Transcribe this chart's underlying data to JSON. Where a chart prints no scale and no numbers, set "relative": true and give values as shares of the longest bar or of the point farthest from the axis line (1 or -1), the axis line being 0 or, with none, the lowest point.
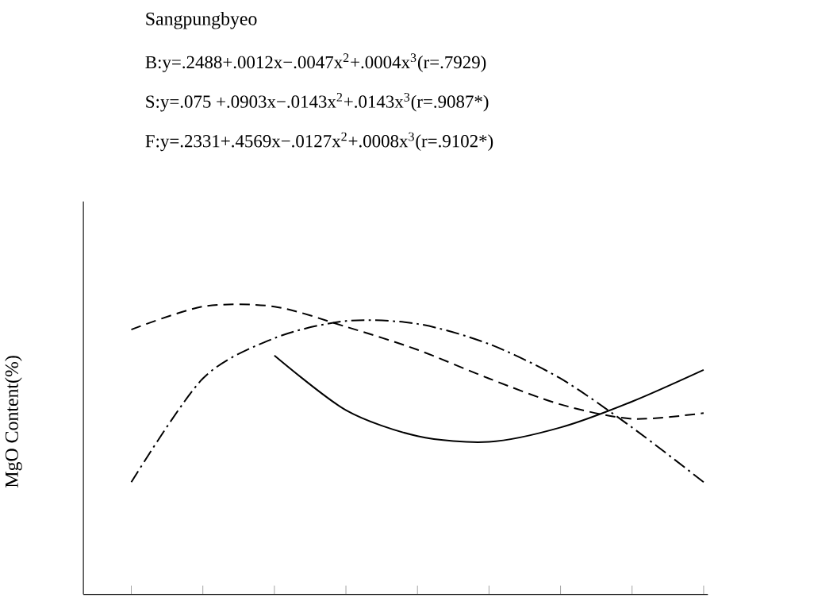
{
  "chart_data": {
    "type": "line",
    "title": "Sangpungbyeo",
    "ylabel": "MgO Content(%)",
    "relative": true,
    "annotations": [
      "B:y=.2488+.0012x−.0047x$^{2}$+.0004x$^{3}$(r=.7929)",
      "S:y=.075 +.0903x−.0143x$^{2}$+.0143x$^{3}$(r=.9087*)",
      "F:y=.2331+.4569x−.0127x$^{2}$+.0008x$^{3}$(r=.9102*)"
    ],
    "categories": [
      null,
      null,
      null,
      null,
      null,
      null,
      null,
      null,
      null
    ],
    "series": [
      {
        "color": "#000000",
        "line_style": "dashed",
        "values": [
          0.92,
          1.0,
          1.0,
          0.93,
          0.85,
          0.75,
          0.66,
          0.61,
          0.63
        ]
      },
      {
        "color": "#000000",
        "line_style": "dashdot",
        "values": [
          0.39,
          0.75,
          0.89,
          0.95,
          0.94,
          0.87,
          0.75,
          0.58,
          0.39
        ]
      },
      {
        "color": "#000000",
        "line_style": "solid",
        "values": [
          null,
          null,
          0.83,
          0.64,
          0.55,
          0.53,
          0.58,
          0.67,
          0.78
        ]
      }
    ]
  }
}
